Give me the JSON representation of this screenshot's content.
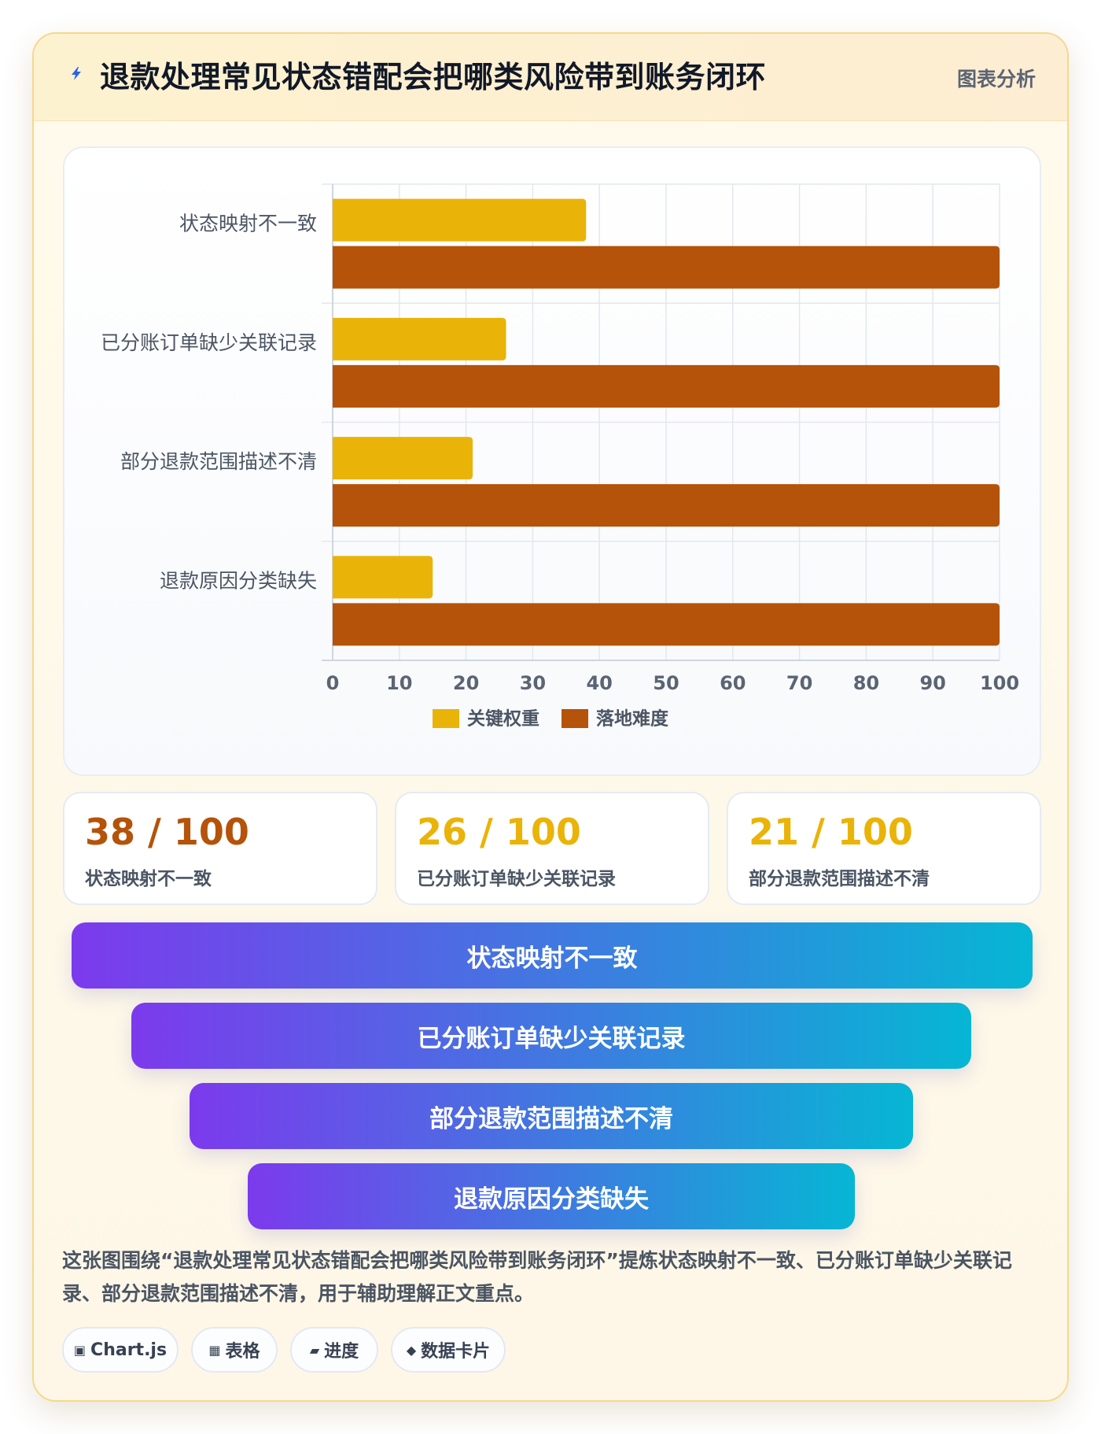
{
  "header": {
    "title": "退款处理常见状态错配会把哪类风险带到账务闭环",
    "tag": "图表分析",
    "icon": "lightning-icon"
  },
  "chart_data": {
    "type": "bar",
    "orientation": "horizontal",
    "categories": [
      "状态映射不一致",
      "已分账订单缺少关联记录",
      "部分退款范围描述不清",
      "退款原因分类缺失"
    ],
    "series": [
      {
        "name": "关键权重",
        "values": [
          38,
          26,
          21,
          15
        ],
        "color": "#eab308"
      },
      {
        "name": "落地难度",
        "values": [
          100,
          100,
          100,
          100
        ],
        "color": "#b45309"
      }
    ],
    "xlim": [
      0,
      100
    ],
    "xticks": [
      0,
      10,
      20,
      30,
      40,
      50,
      60,
      70,
      80,
      90,
      100
    ],
    "grid": true,
    "legend_position": "bottom-center"
  },
  "stats": [
    {
      "value": "38 / 100",
      "label": "状态映射不一致",
      "color": "#b45309"
    },
    {
      "value": "26 / 100",
      "label": "已分账订单缺少关联记录",
      "color": "#eab308"
    },
    {
      "value": "21 / 100",
      "label": "部分退款范围描述不清",
      "color": "#eab308"
    }
  ],
  "funnel": [
    {
      "label": "状态映射不一致"
    },
    {
      "label": "已分账订单缺少关联记录"
    },
    {
      "label": "部分退款范围描述不清"
    },
    {
      "label": "退款原因分类缺失"
    }
  ],
  "description": "这张图围绕“退款处理常见状态错配会把哪类风险带到账务闭环”提炼状态映射不一致、已分账订单缺少关联记录、部分退款范围描述不清，用于辅助理解正文重点。",
  "chips": [
    {
      "icon": "▣",
      "label": "Chart.js"
    },
    {
      "icon": "▦",
      "label": "表格"
    },
    {
      "icon": "▰",
      "label": "进度"
    },
    {
      "icon": "◆",
      "label": "数据卡片"
    }
  ]
}
